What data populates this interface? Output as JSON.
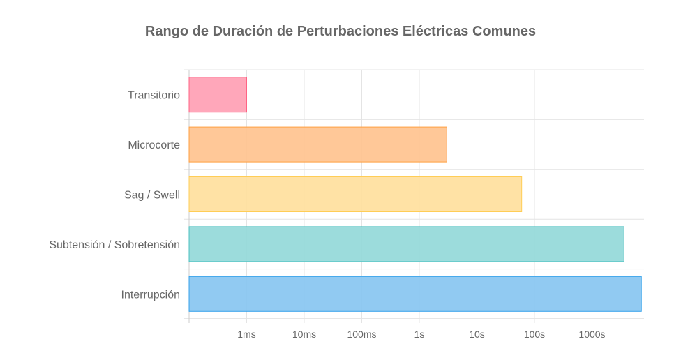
{
  "chart_data": {
    "type": "bar",
    "orientation": "horizontal",
    "title": "Rango de Duración de Perturbaciones Eléctricas Comunes",
    "categories": [
      "Transitorio",
      "Microcorte",
      "Sag / Swell",
      "Subtensión / Sobretensión",
      "Interrupción"
    ],
    "values_seconds": [
      0.001,
      3,
      60,
      3600,
      7200
    ],
    "bar_start_seconds": 0.0001,
    "x_scale": "log",
    "xlim": [
      0.0001,
      8000
    ],
    "x_ticks": [
      {
        "value": 0.001,
        "label": "1ms"
      },
      {
        "value": 0.01,
        "label": "10ms"
      },
      {
        "value": 0.1,
        "label": "100ms"
      },
      {
        "value": 1,
        "label": "1s"
      },
      {
        "value": 10,
        "label": "10s"
      },
      {
        "value": 100,
        "label": "100s"
      },
      {
        "value": 1000,
        "label": "1000s"
      }
    ],
    "grid": true,
    "colors": [
      {
        "fill": "#ffa0b4",
        "stroke": "#ff6384"
      },
      {
        "fill": "#ffc38f",
        "stroke": "#ff9f40"
      },
      {
        "fill": "#ffe09d",
        "stroke": "#ffcd56"
      },
      {
        "fill": "#94d9d9",
        "stroke": "#4bc0c0"
      },
      {
        "fill": "#88c5f1",
        "stroke": "#36a2eb"
      }
    ]
  }
}
